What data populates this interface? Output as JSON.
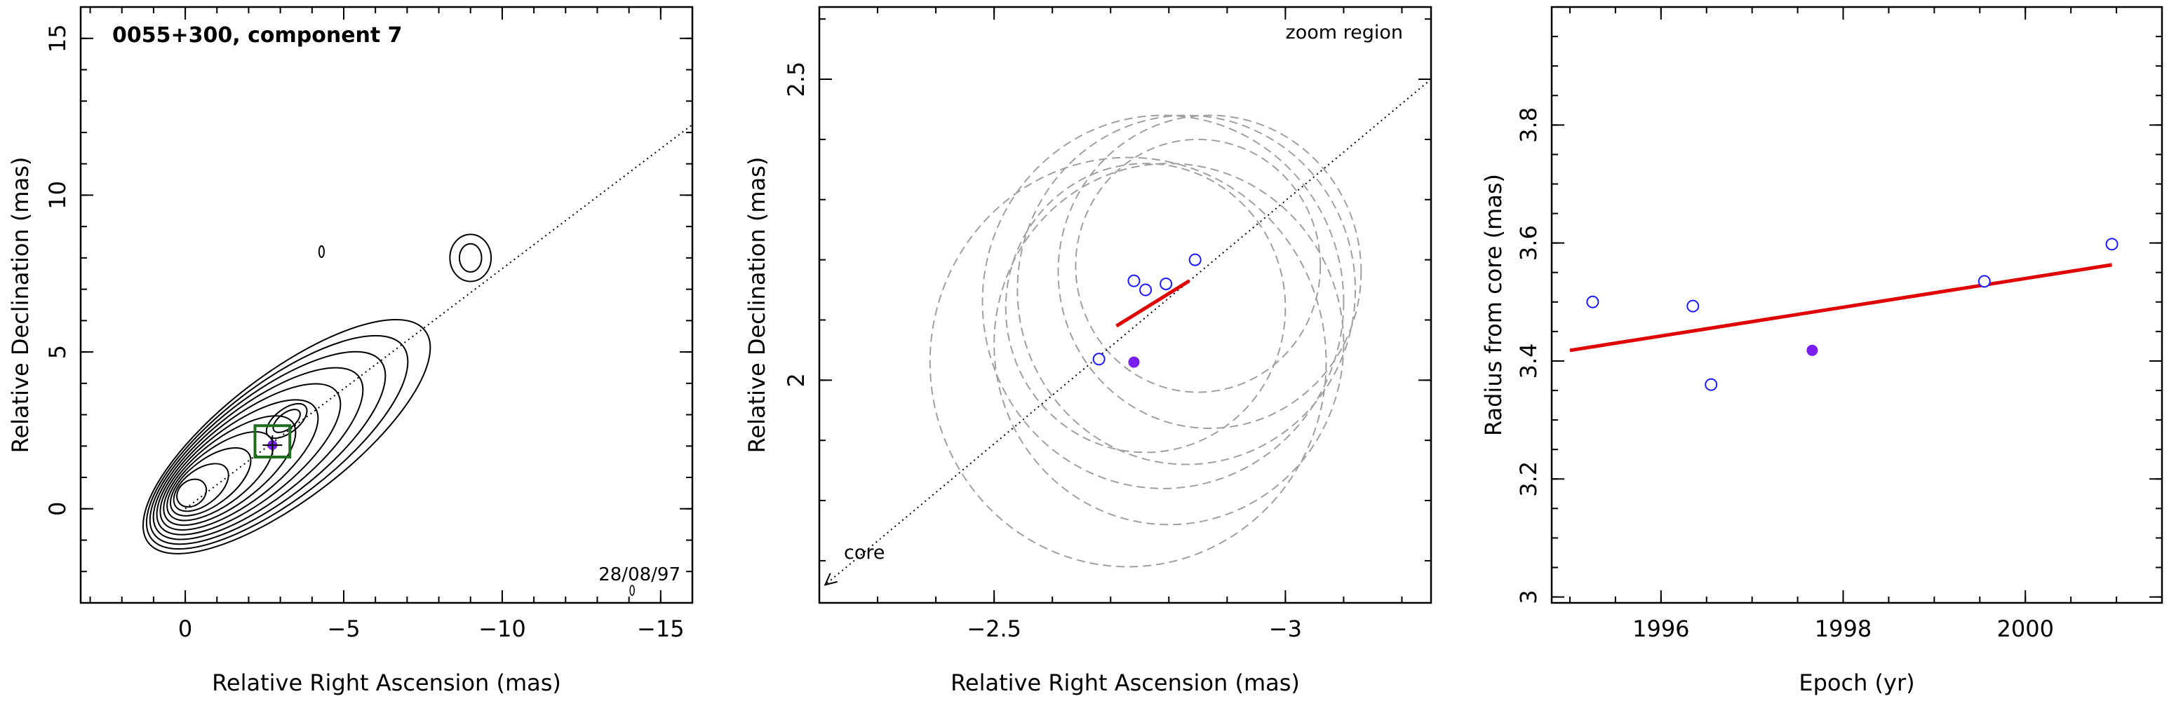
{
  "colors": {
    "contour": "#000000",
    "fit_line": "#e00000",
    "open_marker": "#1a1aff",
    "filled_marker": "#7a1ff0",
    "zoom_box": "#1f6e1f",
    "circle": "#a0a0a0"
  },
  "chart_data": [
    {
      "type": "contour",
      "title": "0055+300, component 7",
      "annotation": "28/08/97",
      "xlabel": "Relative Right Ascension (mas)",
      "ylabel": "Relative Declination (mas)",
      "xlim": [
        3.3,
        -16
      ],
      "ylim": [
        -3,
        16
      ],
      "xticks": [
        0,
        -5,
        -10,
        -15
      ],
      "xtick_labels": [
        "0",
        "−5",
        "−10",
        "−15"
      ],
      "yticks": [
        0,
        5,
        10,
        15
      ],
      "ytick_labels": [
        "0",
        "5",
        "10",
        "15"
      ],
      "jet_axis": {
        "from": [
          0,
          0
        ],
        "to": [
          -16,
          12.25
        ]
      },
      "zoom_box": {
        "x": [
          -2.2,
          -3.3
        ],
        "y": [
          1.65,
          2.65
        ]
      },
      "component_position": {
        "x": -2.75,
        "y": 2.03
      }
    },
    {
      "type": "scatter",
      "annotation_top": "zoom region",
      "annotation_bottom": "core",
      "xlabel": "Relative Right Ascension (mas)",
      "ylabel": "Relative Declination (mas)",
      "xlim": [
        -2.2,
        -3.25
      ],
      "ylim": [
        1.63,
        2.62
      ],
      "xticks": [
        -2.5,
        -3
      ],
      "xtick_labels": [
        "−2.5",
        "−3"
      ],
      "yticks": [
        2,
        2.5
      ],
      "ytick_labels": [
        "2",
        "2.5"
      ],
      "open_points": [
        {
          "x": -2.68,
          "y": 2.035
        },
        {
          "x": -2.74,
          "y": 2.165
        },
        {
          "x": -2.76,
          "y": 2.15
        },
        {
          "x": -2.795,
          "y": 2.16
        },
        {
          "x": -2.845,
          "y": 2.2
        }
      ],
      "filled_point": {
        "x": -2.74,
        "y": 2.03
      },
      "fit_segment": {
        "x": [
          -2.71,
          -2.835
        ],
        "y": [
          2.09,
          2.165
        ]
      },
      "jet_axis": {
        "from": [
          -2.21,
          1.66
        ],
        "to": [
          -3.25,
          2.5
        ]
      },
      "circles": [
        {
          "cx": -2.73,
          "cy": 2.03,
          "r": 0.34
        },
        {
          "cx": -2.8,
          "cy": 2.06,
          "r": 0.3
        },
        {
          "cx": -2.76,
          "cy": 2.12,
          "r": 0.24
        },
        {
          "cx": -2.85,
          "cy": 2.19,
          "r": 0.21
        },
        {
          "cx": -2.83,
          "cy": 2.15,
          "r": 0.29
        },
        {
          "cx": -2.79,
          "cy": 2.13,
          "r": 0.31
        },
        {
          "cx": -2.87,
          "cy": 2.18,
          "r": 0.26
        }
      ]
    },
    {
      "type": "scatter",
      "xlabel": "Epoch (yr)",
      "ylabel": "Radius from core (mas)",
      "xlim": [
        1994.8,
        2001.5
      ],
      "ylim": [
        2.99,
        4.0
      ],
      "xticks": [
        1996,
        1998,
        2000
      ],
      "xtick_labels": [
        "1996",
        "1998",
        "2000"
      ],
      "yticks": [
        3,
        3.2,
        3.4,
        3.6,
        3.8
      ],
      "ytick_labels": [
        "3",
        "3.2",
        "3.4",
        "3.6",
        "3.8"
      ],
      "open_points": [
        {
          "x": 1995.25,
          "y": 3.5
        },
        {
          "x": 1996.35,
          "y": 3.493
        },
        {
          "x": 1996.55,
          "y": 3.36
        },
        {
          "x": 1999.55,
          "y": 3.535
        },
        {
          "x": 2000.95,
          "y": 3.598
        }
      ],
      "filled_point": {
        "x": 1997.66,
        "y": 3.418
      },
      "fit_line": {
        "x": [
          1995.0,
          2000.95
        ],
        "y": [
          3.418,
          3.563
        ]
      }
    }
  ]
}
